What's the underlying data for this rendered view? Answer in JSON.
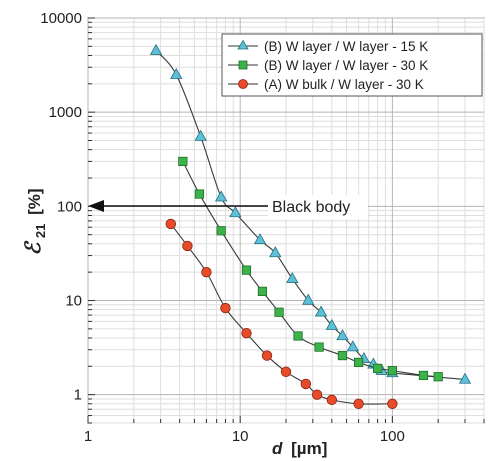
{
  "chart_data": {
    "type": "scatter",
    "title": "",
    "xlabel_symbol": "d",
    "xlabel_unit": "[µm]",
    "ylabel_symbol": "ℰ",
    "ylabel_sub": "21",
    "ylabel_unit": "[%]",
    "x_scale": "log",
    "y_scale": "log",
    "xlim": [
      1,
      400
    ],
    "ylim": [
      0.5,
      10000
    ],
    "x_ticks": [
      {
        "value": 1,
        "label": "1"
      },
      {
        "value": 10,
        "label": "10"
      },
      {
        "value": 100,
        "label": "100"
      }
    ],
    "y_ticks": [
      {
        "value": 1,
        "label": "1"
      },
      {
        "value": 10,
        "label": "10"
      },
      {
        "value": 100,
        "label": "100"
      },
      {
        "value": 1000,
        "label": "1000"
      },
      {
        "value": 10000,
        "label": "10000"
      }
    ],
    "grid": true,
    "legend_position": "top-right",
    "series": [
      {
        "name": "(B) W layer / W layer - 15 K",
        "marker": "triangle",
        "color": "#5bc0d8",
        "x": [
          2.8,
          3.8,
          5.5,
          7.5,
          9.3,
          13.5,
          17,
          22,
          28,
          34,
          40,
          47,
          55,
          65,
          75,
          85,
          100,
          300
        ],
        "y": [
          4500,
          2500,
          550,
          125,
          85,
          44,
          32,
          17,
          10,
          7.5,
          5.4,
          4.2,
          3.2,
          2.4,
          2.1,
          1.8,
          1.7,
          1.45
        ]
      },
      {
        "name": "(B) W layer / W layer - 30 K",
        "marker": "square",
        "color": "#3cb34a",
        "x": [
          4.2,
          5.4,
          7.5,
          11,
          14,
          18,
          24,
          33,
          47,
          60,
          80,
          100,
          160,
          200
        ],
        "y": [
          300,
          135,
          55,
          21,
          12.5,
          7.5,
          4.2,
          3.2,
          2.6,
          2.2,
          1.9,
          1.8,
          1.6,
          1.55
        ]
      },
      {
        "name": "(A) W bulk / W layer - 30 K",
        "marker": "circle",
        "color": "#e84b2a",
        "x": [
          3.5,
          4.5,
          6,
          8,
          11,
          15,
          20,
          27,
          32,
          40,
          60,
          100
        ],
        "y": [
          65,
          38,
          20,
          8.3,
          4.5,
          2.6,
          1.75,
          1.3,
          1.0,
          0.88,
          0.8,
          0.8
        ]
      }
    ],
    "annotations": [
      {
        "text": "Black body",
        "arrow_to_y": 100
      }
    ]
  }
}
